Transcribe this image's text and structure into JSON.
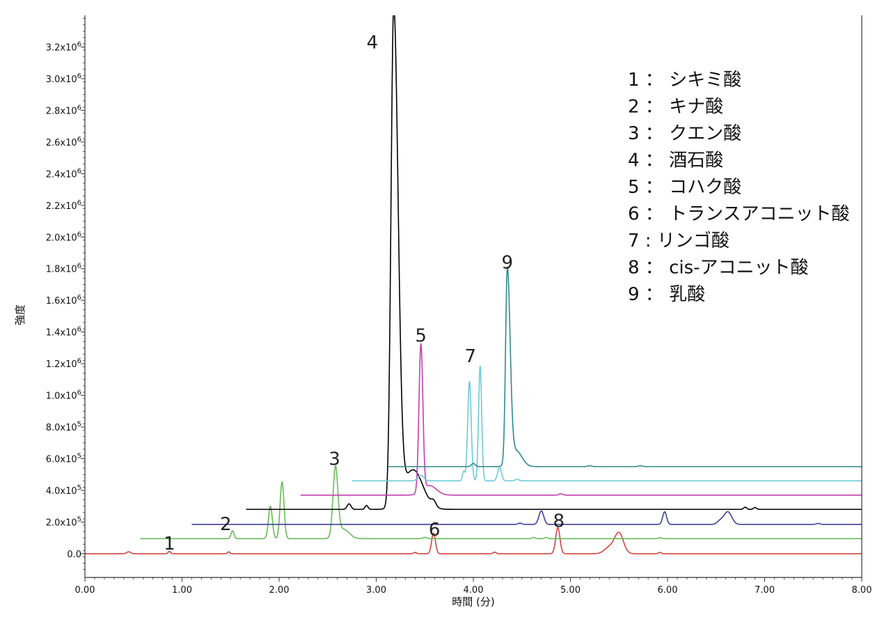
{
  "chart_data": {
    "type": "line",
    "xlabel": "時間 (分)",
    "ylabel": "強度",
    "xlim": [
      0,
      8
    ],
    "ylim": [
      -150000,
      3400000
    ],
    "grid": false,
    "legend_position": "top-right",
    "x_ticks": [
      {
        "value": 0,
        "label": "0.00"
      },
      {
        "value": 1,
        "label": "1.00"
      },
      {
        "value": 2,
        "label": "2.00"
      },
      {
        "value": 3,
        "label": "3.00"
      },
      {
        "value": 4,
        "label": "4.00"
      },
      {
        "value": 5,
        "label": "5.00"
      },
      {
        "value": 6,
        "label": "6.00"
      },
      {
        "value": 7,
        "label": "7.00"
      },
      {
        "value": 8,
        "label": "8.00"
      }
    ],
    "y_ticks": [
      {
        "value": 0,
        "mant": "0.0",
        "exp": ""
      },
      {
        "value": 200000,
        "mant": "2.0x10",
        "exp": "5"
      },
      {
        "value": 400000,
        "mant": "4.0x10",
        "exp": "5"
      },
      {
        "value": 600000,
        "mant": "6.0x10",
        "exp": "5"
      },
      {
        "value": 800000,
        "mant": "8.0x10",
        "exp": "5"
      },
      {
        "value": 1000000,
        "mant": "1.0x10",
        "exp": "6"
      },
      {
        "value": 1200000,
        "mant": "1.2x10",
        "exp": "6"
      },
      {
        "value": 1400000,
        "mant": "1.4x10",
        "exp": "6"
      },
      {
        "value": 1600000,
        "mant": "1.6x10",
        "exp": "6"
      },
      {
        "value": 1800000,
        "mant": "1.8x10",
        "exp": "6"
      },
      {
        "value": 2000000,
        "mant": "2.0x10",
        "exp": "6"
      },
      {
        "value": 2200000,
        "mant": "2.2x10",
        "exp": "6"
      },
      {
        "value": 2400000,
        "mant": "2.4x10",
        "exp": "6"
      },
      {
        "value": 2600000,
        "mant": "2.6x10",
        "exp": "6"
      },
      {
        "value": 2800000,
        "mant": "2.8x10",
        "exp": "6"
      },
      {
        "value": 3000000,
        "mant": "3.0x10",
        "exp": "6"
      },
      {
        "value": 3200000,
        "mant": "3.2x10",
        "exp": "6"
      }
    ],
    "series": [
      {
        "color": "#d0453f",
        "x_start": 0.0,
        "baseline": 0,
        "peaks": [
          [
            0.45,
            12000,
            0.02
          ],
          [
            0.87,
            15000,
            0.012
          ],
          [
            1.48,
            12000,
            0.012
          ],
          [
            3.4,
            8000,
            0.015
          ],
          [
            3.59,
            130000,
            0.02
          ],
          [
            4.22,
            10000,
            0.015
          ],
          [
            4.87,
            165000,
            0.022
          ],
          [
            5.5,
            130000,
            0.045
          ],
          [
            5.4,
            40000,
            0.05
          ],
          [
            5.92,
            8000,
            0.015
          ]
        ]
      },
      {
        "color": "#66bb55",
        "x_start": 0.57,
        "baseline": 95000,
        "peaks": [
          [
            1.52,
            50000,
            0.015
          ],
          [
            1.91,
            205000,
            0.02
          ],
          [
            2.03,
            360000,
            0.02
          ],
          [
            2.58,
            435000,
            0.025
          ],
          [
            2.66,
            60000,
            0.06
          ],
          [
            3.5,
            8000,
            0.02
          ],
          [
            4.62,
            8000,
            0.015
          ],
          [
            4.75,
            8000,
            0.015
          ],
          [
            5.92,
            6000,
            0.015
          ]
        ]
      },
      {
        "color": "#3d3f98",
        "x_start": 1.1,
        "baseline": 185000,
        "peaks": [
          [
            4.48,
            8000,
            0.02
          ],
          [
            4.7,
            85000,
            0.025
          ],
          [
            5.97,
            80000,
            0.02
          ],
          [
            6.62,
            80000,
            0.04
          ],
          [
            6.54,
            20000,
            0.03
          ],
          [
            7.55,
            6000,
            0.02
          ]
        ]
      },
      {
        "color": "#000000",
        "x_start": 1.66,
        "baseline": 280000,
        "peaks": [
          [
            2.72,
            35000,
            0.02
          ],
          [
            2.9,
            25000,
            0.015
          ],
          [
            3.18,
            3150000,
            0.028
          ],
          [
            3.38,
            250000,
            0.1
          ],
          [
            3.59,
            35000,
            0.025
          ],
          [
            6.8,
            14000,
            0.015
          ],
          [
            6.9,
            12000,
            0.015
          ]
        ]
      },
      {
        "color": "#c13fb0",
        "x_start": 2.22,
        "baseline": 370000,
        "peaks": [
          [
            3.46,
            930000,
            0.02
          ],
          [
            3.55,
            60000,
            0.07
          ],
          [
            4.9,
            8000,
            0.02
          ]
        ]
      },
      {
        "color": "#6ccad8",
        "x_start": 2.75,
        "baseline": 460000,
        "peaks": [
          [
            3.46,
            35000,
            0.03
          ],
          [
            3.9,
            60000,
            0.012
          ],
          [
            3.96,
            630000,
            0.018
          ],
          [
            4.07,
            725000,
            0.016
          ],
          [
            4.27,
            85000,
            0.02
          ],
          [
            4.45,
            10000,
            0.02
          ]
        ]
      },
      {
        "color": "#2e8a8e",
        "x_start": 3.12,
        "baseline": 550000,
        "peaks": [
          [
            4.0,
            20000,
            0.02
          ],
          [
            4.35,
            1230000,
            0.018
          ],
          [
            4.44,
            100000,
            0.06
          ],
          [
            5.2,
            6000,
            0.02
          ],
          [
            5.72,
            6000,
            0.02
          ]
        ]
      }
    ],
    "peak_labels": [
      {
        "text": "1",
        "x": 0.87,
        "y": 25000
      },
      {
        "text": "2",
        "x": 1.45,
        "y": 150000
      },
      {
        "text": "3",
        "x": 2.57,
        "y": 560000
      },
      {
        "text": "4",
        "x": 2.96,
        "y": 3190000
      },
      {
        "text": "5",
        "x": 3.46,
        "y": 1340000
      },
      {
        "text": "6",
        "x": 3.6,
        "y": 115000
      },
      {
        "text": "7",
        "x": 3.97,
        "y": 1210000
      },
      {
        "text": "8",
        "x": 4.88,
        "y": 170000
      },
      {
        "text": "9",
        "x": 4.35,
        "y": 1800000
      }
    ],
    "legend": [
      {
        "num": "1",
        "sep": "：",
        "name": "シキミ酸"
      },
      {
        "num": "2",
        "sep": "：",
        "name": "キナ酸"
      },
      {
        "num": "3",
        "sep": "：",
        "name": "クエン酸"
      },
      {
        "num": "4",
        "sep": "：",
        "name": "酒石酸"
      },
      {
        "num": "5",
        "sep": "：",
        "name": "コハク酸"
      },
      {
        "num": "6",
        "sep": "：",
        "name": "トランスアコニット酸"
      },
      {
        "num": "7",
        "sep": ":",
        "name": "リンゴ酸"
      },
      {
        "num": "8",
        "sep": "：",
        "name": "cis-アコニット酸"
      },
      {
        "num": "9",
        "sep": "：",
        "name": "乳酸"
      }
    ]
  }
}
